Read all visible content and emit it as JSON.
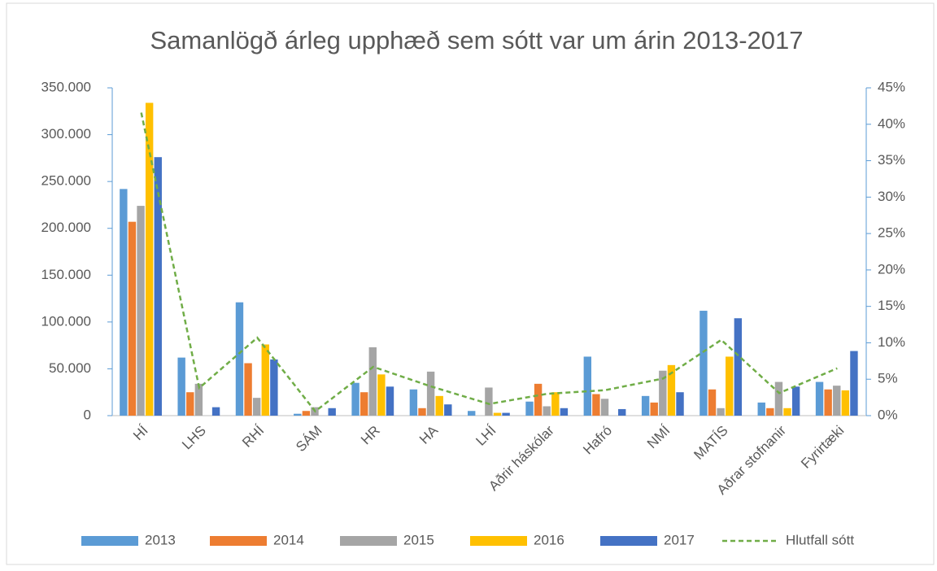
{
  "chart_data": {
    "type": "bar",
    "title": "Samanlögð árleg upphæð sem sótt var um árin 2013-2017",
    "categories": [
      "HÍ",
      "LHS",
      "RHÍ",
      "SÁM",
      "HR",
      "HA",
      "LHÍ",
      "Aðrir háskólar",
      "Hafró",
      "NMÍ",
      "MATÍS",
      "Aðrar stofnanir",
      "Fyrirtæki"
    ],
    "series": [
      {
        "name": "2013",
        "color": "#5b9bd5",
        "values": [
          242000,
          62000,
          121000,
          2000,
          35000,
          28000,
          5000,
          15000,
          63000,
          21000,
          112000,
          14000,
          36000
        ]
      },
      {
        "name": "2014",
        "color": "#ed7d31",
        "values": [
          207000,
          25000,
          56000,
          5000,
          25000,
          8000,
          0,
          34000,
          23000,
          14000,
          28000,
          8000,
          28000
        ]
      },
      {
        "name": "2015",
        "color": "#a5a5a5",
        "values": [
          224000,
          34000,
          19000,
          9000,
          73000,
          47000,
          30000,
          10000,
          18000,
          48000,
          8000,
          36000,
          32000
        ]
      },
      {
        "name": "2016",
        "color": "#ffc000",
        "values": [
          334000,
          0,
          76000,
          0,
          44000,
          21000,
          3000,
          25000,
          0,
          54000,
          63000,
          8000,
          27000
        ]
      },
      {
        "name": "2017",
        "color": "#4472c4",
        "values": [
          276000,
          9000,
          60000,
          8000,
          31000,
          12000,
          3000,
          8000,
          7000,
          25000,
          104000,
          31000,
          69000
        ]
      },
      {
        "name": "Hlutfall sótt",
        "type": "line",
        "axis": "y2",
        "color": "#70ad47",
        "dashed": true,
        "values": [
          41.6,
          3.8,
          10.7,
          0.6,
          6.7,
          4.0,
          1.6,
          3.0,
          3.5,
          5.1,
          10.4,
          3.1,
          6.5
        ]
      }
    ],
    "ylim": [
      0,
      350000
    ],
    "yticks": [
      0,
      {
        "value": 50000,
        "label": "50.000"
      },
      {
        "value": 100000,
        "label": "100.000"
      },
      {
        "value": 150000,
        "label": "150.000"
      },
      {
        "value": 200000,
        "label": "200.000"
      },
      {
        "value": 250000,
        "label": "250.000"
      },
      {
        "value": 300000,
        "label": "300.000"
      },
      {
        "value": 350000,
        "label": "350.000"
      }
    ],
    "y2lim": [
      0,
      45
    ],
    "y2ticks": [
      {
        "value": 0,
        "label": "0%"
      },
      {
        "value": 5,
        "label": "5%"
      },
      {
        "value": 10,
        "label": "10%"
      },
      {
        "value": 15,
        "label": "15%"
      },
      {
        "value": 20,
        "label": "20%"
      },
      {
        "value": 25,
        "label": "25%"
      },
      {
        "value": 30,
        "label": "30%"
      },
      {
        "value": 35,
        "label": "35%"
      },
      {
        "value": 40,
        "label": "40%"
      },
      {
        "value": 45,
        "label": "45%"
      }
    ],
    "grid": false,
    "legend": "bottom"
  }
}
